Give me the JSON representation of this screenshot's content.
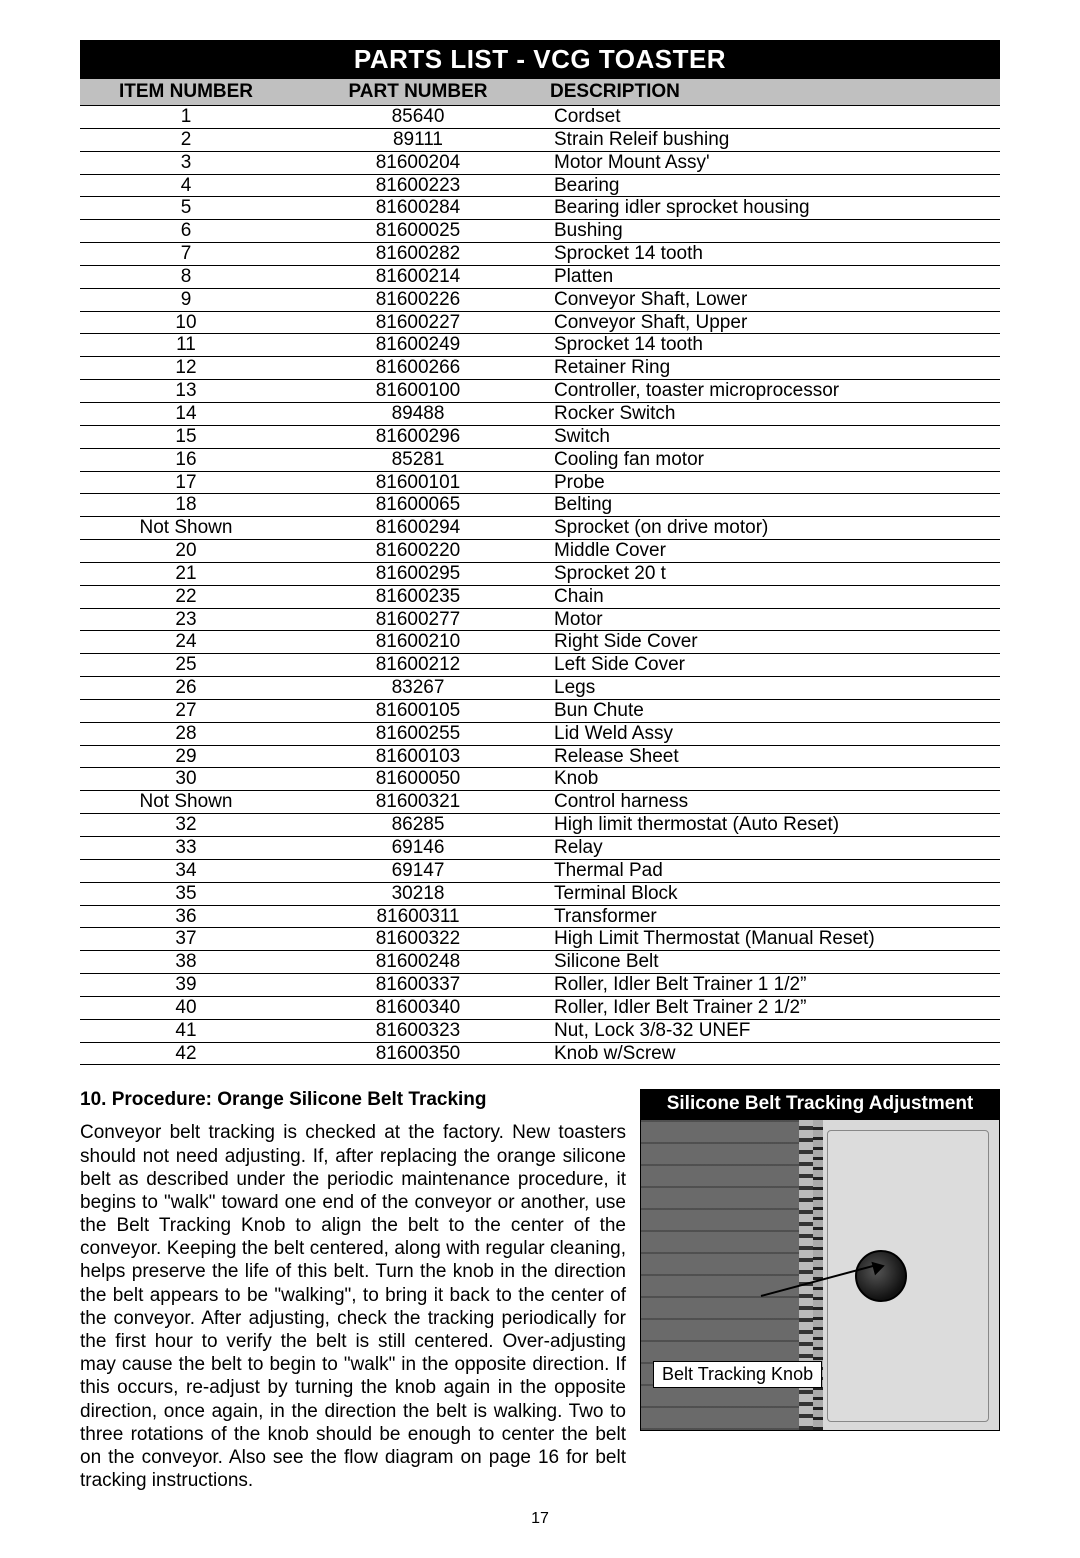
{
  "title": "PARTS LIST  - VCG TOASTER",
  "columns": [
    "ITEM NUMBER",
    "PART NUMBER",
    "DESCRIPTION"
  ],
  "table_style": {
    "title_bg": "#000000",
    "title_fg": "#ffffff",
    "header_bg": "#c0c0c0",
    "row_border": "#000000",
    "font_size_pt": 14
  },
  "rows": [
    {
      "item": "1",
      "part": "85640",
      "desc": "Cordset"
    },
    {
      "item": "2",
      "part": "89111",
      "desc": "Strain Releif bushing"
    },
    {
      "item": "3",
      "part": "81600204",
      "desc": "Motor Mount Assy'"
    },
    {
      "item": "4",
      "part": "81600223",
      "desc": "Bearing"
    },
    {
      "item": "5",
      "part": "81600284",
      "desc": "Bearing idler sprocket housing"
    },
    {
      "item": "6",
      "part": "81600025",
      "desc": "Bushing"
    },
    {
      "item": "7",
      "part": "81600282",
      "desc": "Sprocket 14 tooth"
    },
    {
      "item": "8",
      "part": "81600214",
      "desc": "Platten"
    },
    {
      "item": "9",
      "part": "81600226",
      "desc": "Conveyor Shaft, Lower"
    },
    {
      "item": "10",
      "part": "81600227",
      "desc": "Conveyor Shaft, Upper"
    },
    {
      "item": "11",
      "part": "81600249",
      "desc": "Sprocket 14 tooth"
    },
    {
      "item": "12",
      "part": "81600266",
      "desc": "Retainer Ring"
    },
    {
      "item": "13",
      "part": "81600100",
      "desc": "Controller, toaster microprocessor"
    },
    {
      "item": "14",
      "part": "89488",
      "desc": "Rocker Switch"
    },
    {
      "item": "15",
      "part": "81600296",
      "desc": "Switch"
    },
    {
      "item": "16",
      "part": "85281",
      "desc": "Cooling fan motor"
    },
    {
      "item": "17",
      "part": "81600101",
      "desc": "Probe"
    },
    {
      "item": "18",
      "part": "81600065",
      "desc": "Belting"
    },
    {
      "item": "Not Shown",
      "part": "81600294",
      "desc": "Sprocket (on drive motor)"
    },
    {
      "item": "20",
      "part": "81600220",
      "desc": "Middle Cover"
    },
    {
      "item": "21",
      "part": "81600295",
      "desc": "Sprocket 20 t"
    },
    {
      "item": "22",
      "part": "81600235",
      "desc": "Chain"
    },
    {
      "item": "23",
      "part": "81600277",
      "desc": "Motor"
    },
    {
      "item": "24",
      "part": "81600210",
      "desc": "Right Side Cover"
    },
    {
      "item": "25",
      "part": "81600212",
      "desc": "Left Side Cover"
    },
    {
      "item": "26",
      "part": "83267",
      "desc": "Legs"
    },
    {
      "item": "27",
      "part": "81600105",
      "desc": "Bun Chute"
    },
    {
      "item": "28",
      "part": "81600255",
      "desc": "Lid Weld Assy"
    },
    {
      "item": "29",
      "part": "81600103",
      "desc": "Release Sheet"
    },
    {
      "item": "30",
      "part": "81600050",
      "desc": "Knob"
    },
    {
      "item": "Not Shown",
      "part": "81600321",
      "desc": "Control harness"
    },
    {
      "item": "32",
      "part": "86285",
      "desc": "High limit thermostat (Auto Reset)"
    },
    {
      "item": "33",
      "part": "69146",
      "desc": "Relay"
    },
    {
      "item": "34",
      "part": "69147",
      "desc": "Thermal Pad"
    },
    {
      "item": "35",
      "part": "30218",
      "desc": "Terminal Block"
    },
    {
      "item": "36",
      "part": "81600311",
      "desc": "Transformer"
    },
    {
      "item": "37",
      "part": "81600322",
      "desc": "High Limit Thermostat (Manual Reset)"
    },
    {
      "item": "38",
      "part": "81600248",
      "desc": "Silicone Belt"
    },
    {
      "item": "39",
      "part": "81600337",
      "desc": "Roller, Idler Belt Trainer 1 1/2”"
    },
    {
      "item": "40",
      "part": "81600340",
      "desc": "Roller, Idler Belt Trainer 2 1/2”"
    },
    {
      "item": "41",
      "part": "81600323",
      "desc": "Nut, Lock 3/8-32 UNEF"
    },
    {
      "item": "42",
      "part": "81600350",
      "desc": "Knob w/Screw"
    }
  ],
  "procedure": {
    "heading": "10. Procedure: Orange Silicone Belt Tracking",
    "body": "Conveyor belt tracking is checked at the factory. New toasters should not need adjusting. If, after replacing the orange silicone belt as described under the periodic maintenance procedure, it begins to \"walk\" toward one end of the conveyor or another, use the Belt Tracking Knob to align the belt to the center of the conveyor. Keeping the belt centered, along with regular cleaning, helps preserve the life of this belt. Turn the knob in the direction the belt appears to be \"walking\", to bring it back to the center of the conveyor. After adjusting, check the tracking periodically for the first hour to verify the belt is still centered. Over-adjusting may cause the belt to begin to \"walk\" in the opposite direction. If this occurs, re-adjust by turning the knob again in the opposite direction, once again, in the direction the belt is walking. Two to three rotations of the knob should be enough to center the belt on the conveyor. Also see the flow diagram on page 16 for belt tracking instructions."
  },
  "figure": {
    "title": "Silicone Belt Tracking Adjustment",
    "callout": "Belt Tracking Knob"
  },
  "page_number": "17"
}
